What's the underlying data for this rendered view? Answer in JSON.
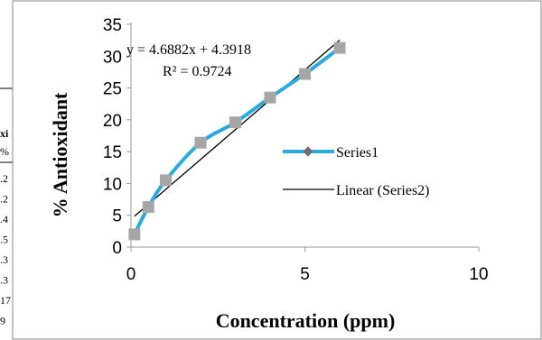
{
  "behind_table": {
    "header_fragments": [
      "xi",
      "%"
    ],
    "cell_fragments": [
      ".2",
      ".2",
      ".4",
      ".5",
      ".3",
      ".3",
      "17",
      "9"
    ]
  },
  "chart_data": {
    "type": "scatter",
    "title": "",
    "xlabel": "Concentration (ppm)",
    "ylabel": "% Antioxidant",
    "xlim": [
      0,
      10
    ],
    "ylim": [
      0,
      35
    ],
    "x_ticks": [
      "0",
      "5",
      "10"
    ],
    "y_ticks": [
      "0",
      "5",
      "10",
      "15",
      "20",
      "25",
      "30",
      "35"
    ],
    "grid": false,
    "legend_position": "right",
    "series": [
      {
        "name": "Series1",
        "style": "smooth-line-with-square-markers",
        "line_color": "#29aae1",
        "marker_color": "#a6a6a6",
        "x": [
          0.1,
          0.5,
          1,
          2,
          3,
          4,
          5,
          6
        ],
        "y": [
          2.0,
          6.3,
          10.5,
          16.4,
          19.6,
          23.5,
          27.2,
          31.3
        ]
      },
      {
        "name": "Linear (Series2)",
        "style": "trendline",
        "line_color": "#000000",
        "slope": 4.6882,
        "intercept": 4.3918,
        "x_range": [
          0.1,
          6
        ]
      }
    ],
    "annotations": {
      "equation": "y = 4.6882x + 4.3918",
      "r_squared": "R² = 0.9724"
    }
  }
}
